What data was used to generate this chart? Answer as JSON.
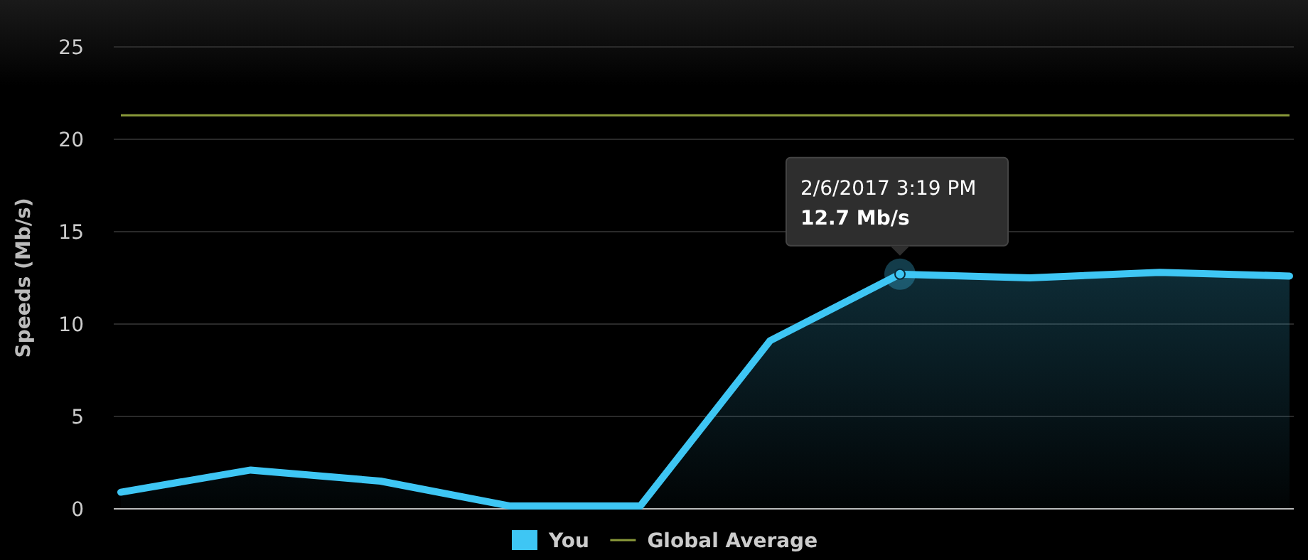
{
  "chart_data": {
    "type": "area",
    "ylabel": "Speeds (Mb/s)",
    "categories": [
      null,
      null,
      null,
      null,
      null,
      null,
      null,
      null,
      null,
      null
    ],
    "series": [
      {
        "name": "You",
        "color": "#3ec6f4",
        "values": [
          0.9,
          2.1,
          1.5,
          0.15,
          0.15,
          9.1,
          12.7,
          12.5,
          12.8,
          12.6
        ]
      }
    ],
    "ylim": [
      0,
      25
    ],
    "yticks": [
      0,
      5,
      10,
      15,
      20,
      25
    ],
    "grid": "y",
    "legend": "bottom",
    "ref_lines": [
      {
        "axis": "y",
        "value": 21.3,
        "label": "Global Average",
        "color": "#8a9a3a"
      }
    ],
    "annotations": [
      {
        "text": "2/6/2017 3:19 PM\n12.7 Mb/s",
        "y": 12.7
      }
    ]
  }
}
